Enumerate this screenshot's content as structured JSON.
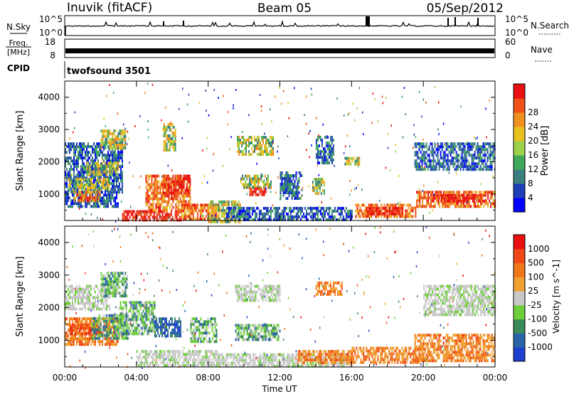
{
  "header": {
    "station": "Inuvik (fitACF)",
    "beam": "Beam 05",
    "date": "05/Sep/2012"
  },
  "noise_panel": {
    "left_label": "N.Sky",
    "left_ticks": [
      "10^5",
      "10^0"
    ],
    "right_label": "N.Search",
    "right_ticks": [
      "10^5",
      "10^0"
    ]
  },
  "freq_panel": {
    "left_label_1": "Freq.",
    "left_label_2": "[MHz]",
    "left_ticks": [
      "18",
      "8"
    ],
    "right_label": "Nave",
    "right_ticks": [
      "60",
      "0"
    ]
  },
  "cpid_panel": {
    "label": "CPID",
    "value": "twofsound 3501"
  },
  "x_axis": {
    "label": "Time UT",
    "ticks": [
      "00:00",
      "04:00",
      "08:00",
      "12:00",
      "16:00",
      "20:00",
      "00:00"
    ]
  },
  "chart_data": [
    {
      "type": "heatmap",
      "title": "Power",
      "xlabel": "Time UT",
      "ylabel": "Slant Range [km]",
      "xlim": [
        "00:00",
        "24:00"
      ],
      "ylim": [
        180,
        4500
      ],
      "y_ticks": [
        1000,
        2000,
        3000,
        4000
      ],
      "colorbar": {
        "label": "Power [dB]",
        "ticks": [
          4,
          8,
          12,
          16,
          20,
          24,
          28
        ],
        "colors": [
          "#0000ff",
          "#1f3fb8",
          "#3b7f7f",
          "#3fa85a",
          "#9bd24a",
          "#e8c020",
          "#f09020",
          "#ee5018",
          "#e81010"
        ]
      },
      "regions": [
        {
          "t": [
            0.0,
            3.2
          ],
          "r": [
            1100,
            2600
          ],
          "level": "low"
        },
        {
          "t": [
            0.2,
            2.5
          ],
          "r": [
            1100,
            1500
          ],
          "level": "mid"
        },
        {
          "t": [
            1.2,
            3.0
          ],
          "r": [
            1600,
            2000
          ],
          "level": "mid"
        },
        {
          "t": [
            2.0,
            3.4
          ],
          "r": [
            2400,
            3000
          ],
          "level": "mid"
        },
        {
          "t": [
            0.0,
            3.0
          ],
          "r": [
            600,
            1100
          ],
          "level": "low"
        },
        {
          "t": [
            0.5,
            2.0
          ],
          "r": [
            800,
            1100
          ],
          "level": "high"
        },
        {
          "t": [
            3.2,
            6.5
          ],
          "r": [
            180,
            500
          ],
          "level": "max"
        },
        {
          "t": [
            4.5,
            7.0
          ],
          "r": [
            500,
            1600
          ],
          "level": "high"
        },
        {
          "t": [
            5.5,
            7.0
          ],
          "r": [
            1000,
            1600
          ],
          "level": "max"
        },
        {
          "t": [
            6.5,
            8.5
          ],
          "r": [
            180,
            700
          ],
          "level": "high"
        },
        {
          "t": [
            5.5,
            6.2
          ],
          "r": [
            2400,
            3200
          ],
          "level": "mid"
        },
        {
          "t": [
            8.0,
            9.8
          ],
          "r": [
            180,
            800
          ],
          "level": "mid"
        },
        {
          "t": [
            9.8,
            11.5
          ],
          "r": [
            1200,
            1600
          ],
          "level": "mid"
        },
        {
          "t": [
            10.3,
            11.2
          ],
          "r": [
            1000,
            1200
          ],
          "level": "max"
        },
        {
          "t": [
            9.6,
            11.6
          ],
          "r": [
            2200,
            2800
          ],
          "level": "mid"
        },
        {
          "t": [
            12.0,
            13.2
          ],
          "r": [
            900,
            1700
          ],
          "level": "low"
        },
        {
          "t": [
            13.8,
            14.5
          ],
          "r": [
            1000,
            1500
          ],
          "level": "mid"
        },
        {
          "t": [
            9.0,
            16.0
          ],
          "r": [
            200,
            600
          ],
          "level": "low"
        },
        {
          "t": [
            16.2,
            19.6
          ],
          "r": [
            300,
            700
          ],
          "level": "high"
        },
        {
          "t": [
            16.8,
            18.8
          ],
          "r": [
            400,
            600
          ],
          "level": "max"
        },
        {
          "t": [
            19.6,
            24.0
          ],
          "r": [
            600,
            1100
          ],
          "level": "high"
        },
        {
          "t": [
            20.5,
            23.5
          ],
          "r": [
            800,
            1000
          ],
          "level": "max"
        },
        {
          "t": [
            19.5,
            24.0
          ],
          "r": [
            1800,
            2600
          ],
          "level": "low"
        },
        {
          "t": [
            14.0,
            15.0
          ],
          "r": [
            2000,
            2800
          ],
          "level": "low"
        },
        {
          "t": [
            15.6,
            16.4
          ],
          "r": [
            1950,
            2150
          ],
          "level": "mid"
        }
      ]
    },
    {
      "type": "heatmap",
      "title": "Velocity",
      "xlabel": "Time UT",
      "ylabel": "Slant Range [km]",
      "xlim": [
        "00:00",
        "24:00"
      ],
      "ylim": [
        180,
        4500
      ],
      "y_ticks": [
        1000,
        2000,
        3000,
        4000
      ],
      "colorbar": {
        "label": "Velocity [m s^-1]",
        "ticks": [
          1000,
          500,
          100,
          25,
          -25,
          -100,
          -500,
          -1000
        ],
        "colors": [
          "#1f3fd0",
          "#2a64a8",
          "#3b8a5a",
          "#6fcf3a",
          "#c8c8c8",
          "#f0a030",
          "#f07818",
          "#f04818",
          "#e81010"
        ]
      },
      "regions": [
        {
          "t": [
            0.0,
            3.0
          ],
          "r": [
            900,
            1700
          ],
          "level": "orange"
        },
        {
          "t": [
            0.3,
            2.0
          ],
          "r": [
            1200,
            1500
          ],
          "level": "darkorange"
        },
        {
          "t": [
            0.0,
            2.5
          ],
          "r": [
            2000,
            2700
          ],
          "level": "gray"
        },
        {
          "t": [
            1.5,
            3.5
          ],
          "r": [
            1100,
            1800
          ],
          "level": "green"
        },
        {
          "t": [
            2.0,
            3.5
          ],
          "r": [
            2400,
            3100
          ],
          "level": "green"
        },
        {
          "t": [
            3.0,
            5.0
          ],
          "r": [
            1200,
            2200
          ],
          "level": "green"
        },
        {
          "t": [
            5.0,
            6.5
          ],
          "r": [
            1100,
            1700
          ],
          "level": "blue"
        },
        {
          "t": [
            4.0,
            8.5
          ],
          "r": [
            180,
            700
          ],
          "level": "gray"
        },
        {
          "t": [
            7.0,
            8.5
          ],
          "r": [
            1000,
            1700
          ],
          "level": "green"
        },
        {
          "t": [
            9.5,
            12.0
          ],
          "r": [
            1000,
            1500
          ],
          "level": "green"
        },
        {
          "t": [
            9.5,
            12.0
          ],
          "r": [
            2200,
            2700
          ],
          "level": "gray"
        },
        {
          "t": [
            8.5,
            16.0
          ],
          "r": [
            180,
            600
          ],
          "level": "gray"
        },
        {
          "t": [
            13.0,
            16.0
          ],
          "r": [
            300,
            700
          ],
          "level": "orange"
        },
        {
          "t": [
            16.0,
            20.0
          ],
          "r": [
            300,
            800
          ],
          "level": "orange"
        },
        {
          "t": [
            19.5,
            24.0
          ],
          "r": [
            400,
            1200
          ],
          "level": "orange"
        },
        {
          "t": [
            14.0,
            15.5
          ],
          "r": [
            2400,
            2800
          ],
          "level": "orange"
        },
        {
          "t": [
            20.0,
            24.0
          ],
          "r": [
            1800,
            2700
          ],
          "level": "gray"
        }
      ]
    }
  ]
}
